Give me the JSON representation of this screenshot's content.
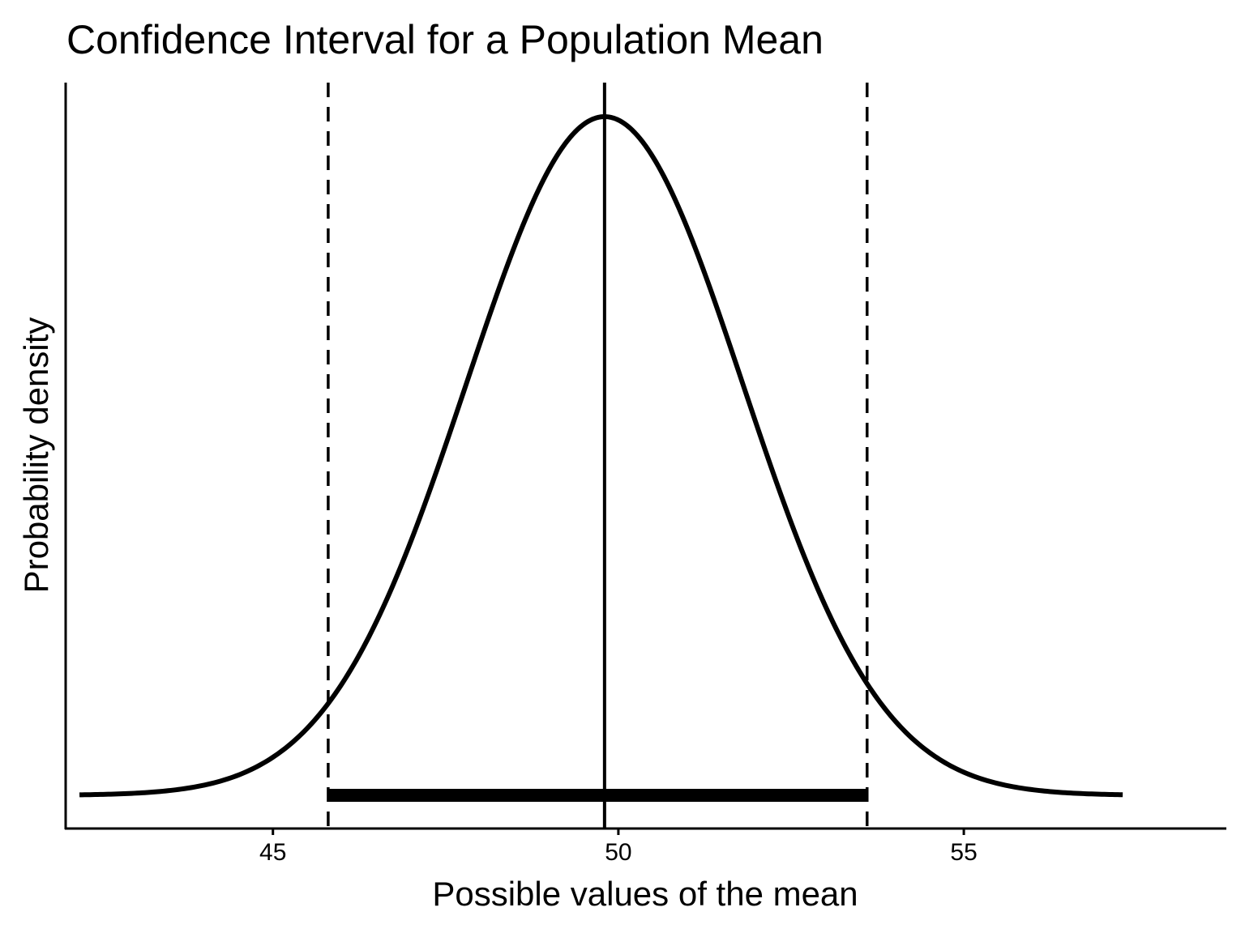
{
  "chart_data": {
    "type": "line",
    "title": "Confidence Interval for a Population Mean",
    "xlabel": "Possible values of the mean",
    "ylabel": "Probability density",
    "xlim": [
      42.0,
      58.8
    ],
    "x_ticks": [
      45,
      50,
      55
    ],
    "x_tick_labels": [
      "45",
      "50",
      "55"
    ],
    "distribution": {
      "name": "normal",
      "mean": 49.8,
      "sd": 2.0,
      "x_range": [
        42.2,
        57.3
      ]
    },
    "mean_line": 49.8,
    "confidence_interval": {
      "lower": 45.8,
      "upper": 53.6
    },
    "colors": {
      "line": "#000000",
      "background": "#ffffff"
    }
  }
}
